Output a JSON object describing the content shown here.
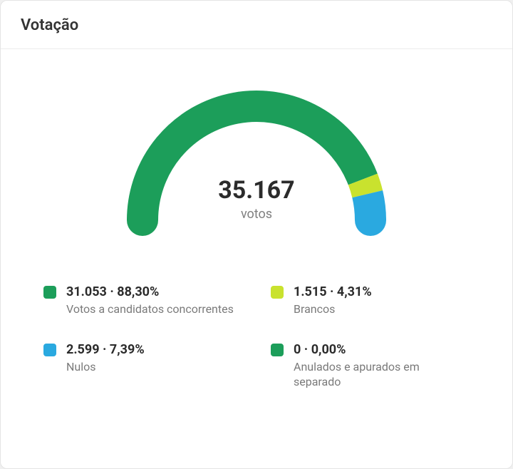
{
  "card": {
    "title": "Votação",
    "background_color": "#ffffff",
    "border_color": "#e4e4e4",
    "title_color": "#333333",
    "title_fontsize": 22
  },
  "chart": {
    "type": "semi-donut",
    "total_value": "35.167",
    "total_label": "votos",
    "total_fontsize": 34,
    "total_color": "#2b2b2b",
    "sub_color": "#808080",
    "stroke_width": 44,
    "radius": 160,
    "segments": [
      {
        "key": "candidatos",
        "percent": 88.3,
        "color": "#1c9e5a"
      },
      {
        "key": "brancos",
        "percent": 4.31,
        "color": "#c9e22e"
      },
      {
        "key": "nulos",
        "percent": 7.39,
        "color": "#2aa9e0"
      },
      {
        "key": "anulados",
        "percent": 0.0,
        "color": "#1c9e5a"
      }
    ]
  },
  "legend": {
    "items": [
      {
        "swatch_color": "#1c9e5a",
        "value": "31.053 · 88,30%",
        "label": "Votos a candidatos concorrentes"
      },
      {
        "swatch_color": "#c9e22e",
        "value": "1.515 · 4,31%",
        "label": "Brancos"
      },
      {
        "swatch_color": "#2aa9e0",
        "value": "2.599 · 7,39%",
        "label": "Nulos"
      },
      {
        "swatch_color": "#1c9e5a",
        "value": "0 · 0,00%",
        "label": "Anulados e apurados em separado"
      }
    ],
    "value_fontsize": 18,
    "value_color": "#2b2b2b",
    "label_fontsize": 16,
    "label_color": "#7a7a7a",
    "swatch_radius": 4,
    "swatch_size": 18
  }
}
